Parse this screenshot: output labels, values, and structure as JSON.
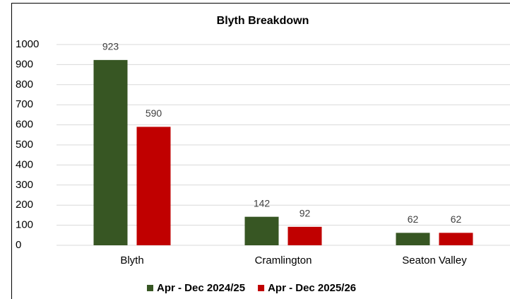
{
  "chart_data": {
    "type": "bar",
    "title": "Blyth Breakdown",
    "categories": [
      "Blyth",
      "Cramlington",
      "Seaton Valley"
    ],
    "series": [
      {
        "name": "Apr - Dec 2024/25",
        "color": "#375623",
        "values": [
          923,
          142,
          62
        ]
      },
      {
        "name": "Apr - Dec 2025/26",
        "color": "#c00000",
        "values": [
          590,
          92,
          62
        ]
      }
    ],
    "ylim": [
      0,
      1000
    ],
    "yticks": [
      0,
      100,
      200,
      300,
      400,
      500,
      600,
      700,
      800,
      900,
      1000
    ],
    "grid": true,
    "legend": "bottom"
  }
}
